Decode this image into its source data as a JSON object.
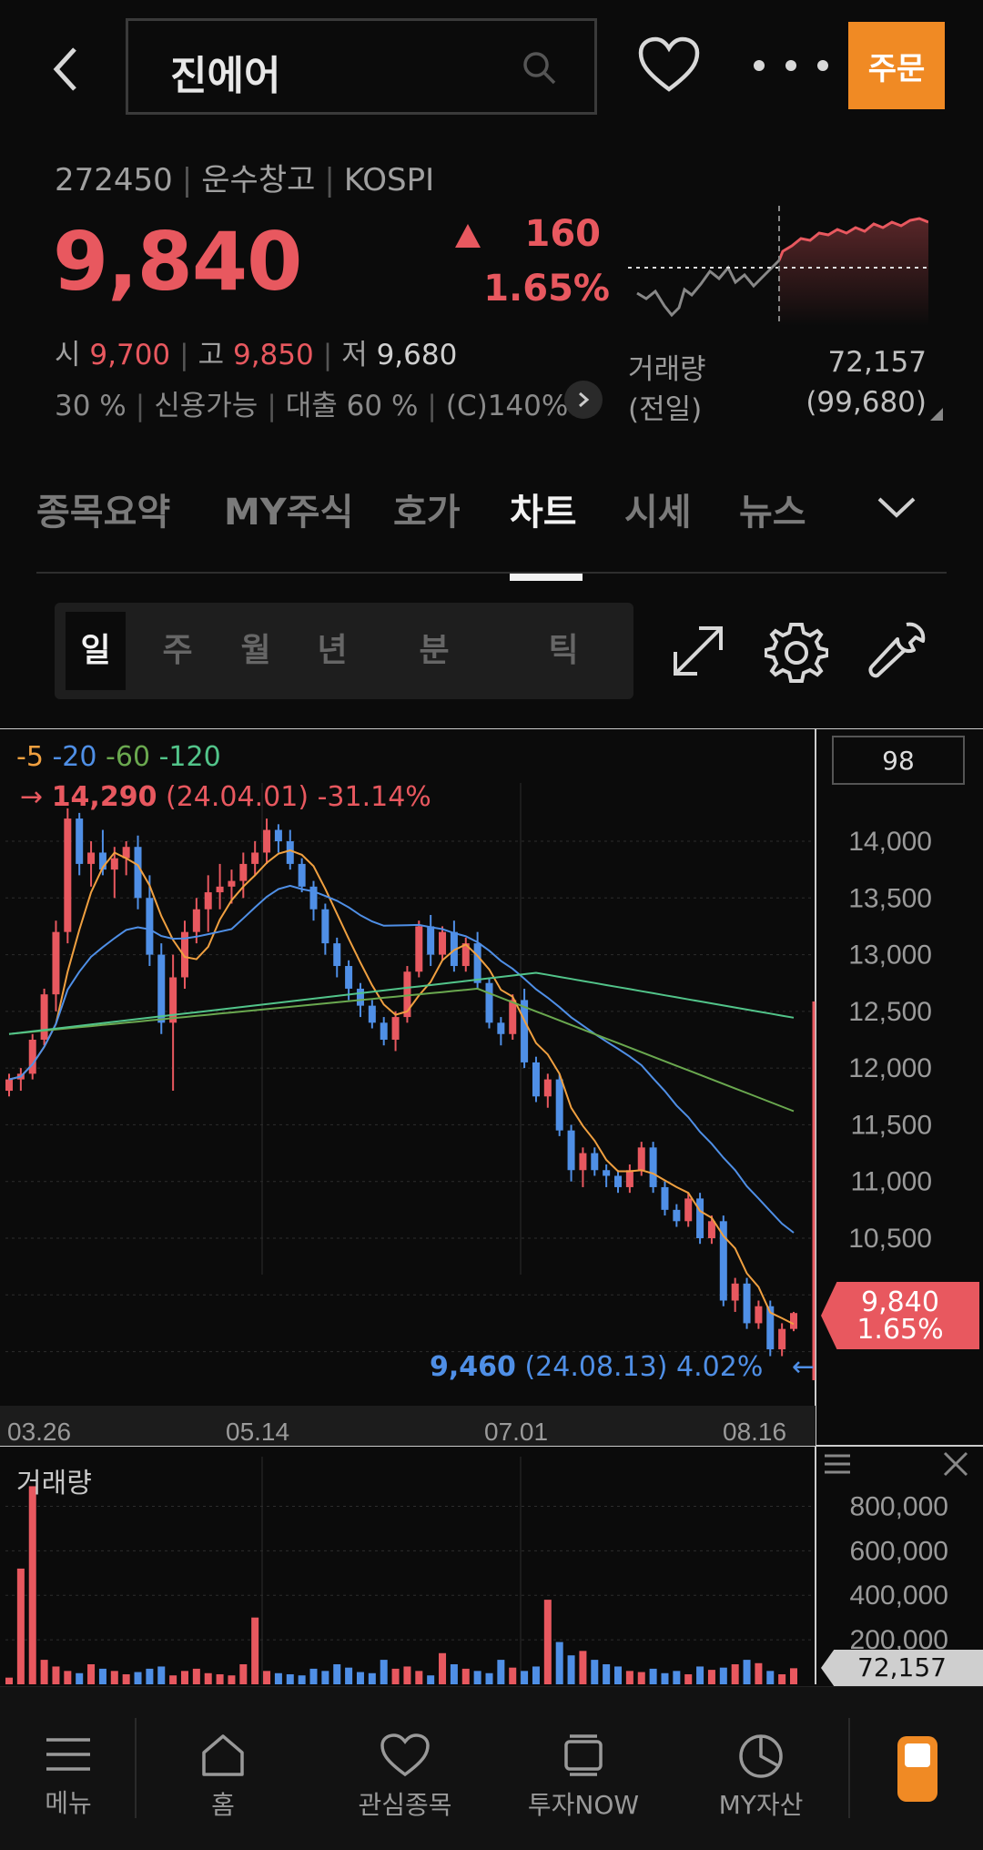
{
  "header": {
    "search_value": "진에어",
    "order_label": "주문"
  },
  "stock": {
    "code": "272450",
    "sector": "운수창고",
    "market": "KOSPI",
    "price": "9,840",
    "change": "160",
    "change_pct": "1.65%",
    "open_label": "시",
    "open": "9,700",
    "high_label": "고",
    "high": "9,850",
    "low_label": "저",
    "low": "9,680",
    "margin": "30 %",
    "credit": "신용가능",
    "loan": "대출 60 %",
    "c_rate": "(C)140%",
    "volume_label": "거래량",
    "volume": "72,157",
    "prev_label": "(전일)",
    "prev_volume": "(99,680)"
  },
  "tabs": [
    "종목요약",
    "MY주식",
    "호가",
    "차트",
    "시세",
    "뉴스"
  ],
  "active_tab": "차트",
  "periods": [
    "일",
    "주",
    "월",
    "년",
    "분",
    "틱"
  ],
  "chart": {
    "count": "98",
    "ma": [
      "5",
      "20",
      "60",
      "120"
    ],
    "hi_price": "14,290",
    "hi_date": "(24.04.01)",
    "hi_pct": "-31.14%",
    "lo_price": "9,460",
    "lo_date": "(24.08.13)",
    "lo_pct": "4.02%",
    "price_ticks": [
      "14,000",
      "13,500",
      "13,000",
      "12,500",
      "12,000",
      "11,500",
      "11,000",
      "10,500"
    ],
    "current_price": "9,840",
    "current_pct": "1.65%",
    "dates": [
      "03.26",
      "05.14",
      "07.01",
      "08.16"
    ],
    "volume_title": "거래량",
    "volume_ticks": [
      "800,000",
      "600,000",
      "400,000",
      "200,000"
    ],
    "current_volume": "72,157"
  },
  "chart_data": {
    "type": "candlestick",
    "yrange": [
      9400,
      14300
    ],
    "ohlc": [
      [
        11800,
        11950,
        11750,
        11900
      ],
      [
        11900,
        12000,
        11800,
        11950
      ],
      [
        11950,
        12300,
        11900,
        12250
      ],
      [
        12250,
        12700,
        12200,
        12650
      ],
      [
        12650,
        13300,
        12500,
        13200
      ],
      [
        13200,
        14290,
        13100,
        14200
      ],
      [
        14200,
        14250,
        13700,
        13800
      ],
      [
        13800,
        14000,
        13600,
        13900
      ],
      [
        13900,
        14100,
        13700,
        13750
      ],
      [
        13750,
        13950,
        13500,
        13850
      ],
      [
        13850,
        14000,
        13700,
        13950
      ],
      [
        13950,
        14050,
        13400,
        13500
      ],
      [
        13500,
        13700,
        12900,
        13000
      ],
      [
        13000,
        13100,
        12300,
        12400
      ],
      [
        12400,
        13000,
        11800,
        12800
      ],
      [
        12800,
        13300,
        12700,
        13200
      ],
      [
        13200,
        13500,
        13100,
        13400
      ],
      [
        13400,
        13700,
        13200,
        13550
      ],
      [
        13550,
        13800,
        13400,
        13600
      ],
      [
        13600,
        13750,
        13450,
        13650
      ],
      [
        13650,
        13900,
        13500,
        13800
      ],
      [
        13800,
        14000,
        13700,
        13900
      ],
      [
        13900,
        14200,
        13800,
        14100
      ],
      [
        14100,
        14150,
        13900,
        14000
      ],
      [
        14000,
        14100,
        13750,
        13800
      ],
      [
        13800,
        13850,
        13550,
        13600
      ],
      [
        13600,
        13650,
        13300,
        13400
      ],
      [
        13400,
        13450,
        13000,
        13100
      ],
      [
        13100,
        13150,
        12800,
        12900
      ],
      [
        12900,
        12950,
        12600,
        12700
      ],
      [
        12700,
        12750,
        12450,
        12550
      ],
      [
        12550,
        12600,
        12350,
        12400
      ],
      [
        12400,
        12450,
        12200,
        12250
      ],
      [
        12250,
        12500,
        12150,
        12450
      ],
      [
        12450,
        12900,
        12400,
        12850
      ],
      [
        12850,
        13300,
        12800,
        13250
      ],
      [
        13250,
        13350,
        12900,
        13000
      ],
      [
        13000,
        13250,
        12950,
        13200
      ],
      [
        13200,
        13300,
        12850,
        12900
      ],
      [
        12900,
        13150,
        12850,
        13100
      ],
      [
        13100,
        13200,
        12700,
        12750
      ],
      [
        12750,
        12800,
        12350,
        12400
      ],
      [
        12400,
        12450,
        12200,
        12300
      ],
      [
        12300,
        12650,
        12250,
        12600
      ],
      [
        12600,
        12700,
        12000,
        12050
      ],
      [
        12050,
        12100,
        11700,
        11750
      ],
      [
        11750,
        11950,
        11650,
        11900
      ],
      [
        11900,
        11950,
        11400,
        11450
      ],
      [
        11450,
        11500,
        11000,
        11100
      ],
      [
        11100,
        11300,
        10950,
        11250
      ],
      [
        11250,
        11300,
        11050,
        11100
      ],
      [
        11100,
        11150,
        10950,
        11050
      ],
      [
        11050,
        11100,
        10900,
        10950
      ],
      [
        10950,
        11150,
        10900,
        11100
      ],
      [
        11100,
        11350,
        11050,
        11300
      ],
      [
        11300,
        11350,
        10900,
        10950
      ],
      [
        10950,
        11000,
        10700,
        10750
      ],
      [
        10750,
        10800,
        10600,
        10650
      ],
      [
        10650,
        10900,
        10600,
        10850
      ],
      [
        10850,
        10900,
        10450,
        10500
      ],
      [
        10500,
        10700,
        10450,
        10650
      ],
      [
        10650,
        10700,
        9900,
        9950
      ],
      [
        9950,
        10150,
        9850,
        10100
      ],
      [
        10100,
        10150,
        9700,
        9750
      ],
      [
        9750,
        9950,
        9700,
        9900
      ],
      [
        9900,
        9950,
        9460,
        9520
      ],
      [
        9520,
        9750,
        9460,
        9700
      ],
      [
        9700,
        9850,
        9680,
        9840
      ]
    ],
    "volume": [
      30000,
      520000,
      890000,
      110000,
      80000,
      60000,
      50000,
      90000,
      70000,
      60000,
      45000,
      55000,
      70000,
      80000,
      40000,
      60000,
      70000,
      50000,
      45000,
      40000,
      90000,
      300000,
      60000,
      50000,
      45000,
      40000,
      70000,
      60000,
      90000,
      75000,
      55000,
      50000,
      110000,
      70000,
      80000,
      60000,
      40000,
      140000,
      90000,
      70000,
      60000,
      50000,
      110000,
      75000,
      60000,
      80000,
      380000,
      190000,
      130000,
      150000,
      110000,
      90000,
      80000,
      60000,
      55000,
      70000,
      50000,
      60000,
      45000,
      80000,
      65000,
      75000,
      90000,
      110000,
      95000,
      60000,
      45000,
      72157
    ]
  }
}
